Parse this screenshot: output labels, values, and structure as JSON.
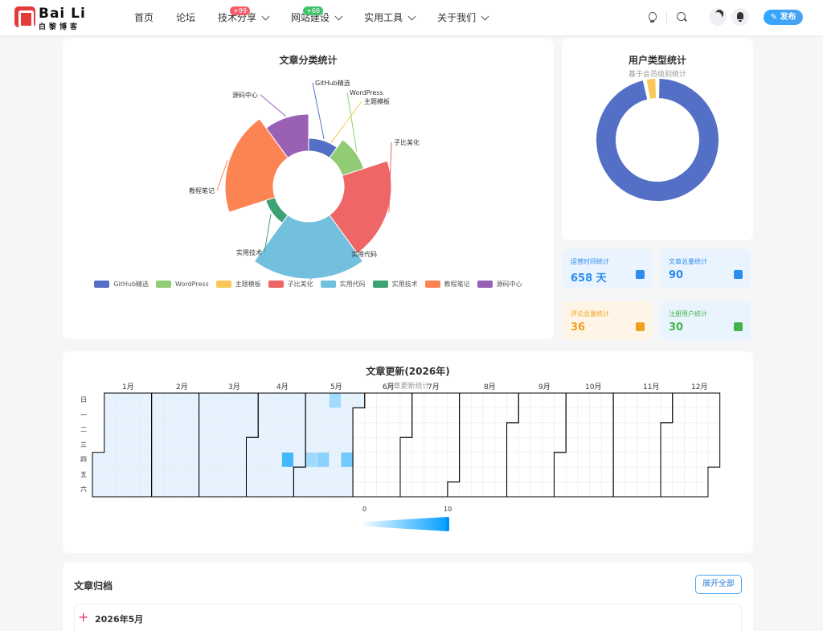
{
  "brand": {
    "name": "Bai Li",
    "sub": "白黎博客",
    "accent": "#e33a3a"
  },
  "nav": [
    {
      "label": "首页",
      "dropdown": false
    },
    {
      "label": "论坛",
      "dropdown": false
    },
    {
      "label": "技术分享",
      "dropdown": true,
      "badge": "+99",
      "badge_color": "red"
    },
    {
      "label": "网站建设",
      "dropdown": true,
      "badge": "+66",
      "badge_color": "green"
    },
    {
      "label": "实用工具",
      "dropdown": true
    },
    {
      "label": "关于我们",
      "dropdown": true
    }
  ],
  "header": {
    "publish_label": "发布"
  },
  "category_chart": {
    "title": "文章分类统计",
    "chart_data": {
      "type": "pie",
      "title": "文章分类统计",
      "rose": true,
      "slices": [
        {
          "label": "GitHub精选",
          "value": 1,
          "color": "#5470c6"
        },
        {
          "label": "WordPress",
          "value": 1,
          "color": "#91cc75"
        },
        {
          "label": "主题模板",
          "value": 0,
          "color": "#fac858"
        },
        {
          "label": "子比美化",
          "value": 2,
          "color": "#ee6666"
        },
        {
          "label": "实用代码",
          "value": 2,
          "color": "#73c0de"
        },
        {
          "label": "实用技术",
          "value": 1,
          "color": "#3ba272"
        },
        {
          "label": "教程笔记",
          "value": 2,
          "color": "#fc8452"
        },
        {
          "label": "源码中心",
          "value": 1,
          "color": "#9a60b4"
        }
      ],
      "legend_position": "bottom"
    }
  },
  "user_chart": {
    "title": "用户类型统计",
    "subtitle": "基于会员级别统计",
    "chart_data": {
      "type": "pie",
      "donut": true,
      "slices": [
        {
          "label": "",
          "value": 29,
          "color": "#5470c6"
        },
        {
          "label": "",
          "value": 1,
          "color": "#fac858"
        }
      ]
    }
  },
  "stats": [
    {
      "label": "运营时间统计",
      "value": "658 天",
      "icon": "calendar-icon",
      "bg": "#eaf4fe",
      "color": "#2d8cf0"
    },
    {
      "label": "文章总量统计",
      "value": "90",
      "icon": "file-icon",
      "bg": "#eaf4fe",
      "color": "#2d8cf0"
    },
    {
      "label": "评论总量统计",
      "value": "36",
      "icon": "comments-icon",
      "bg": "#fff5e6",
      "color": "#f0a020"
    },
    {
      "label": "注册用户统计",
      "value": "30",
      "icon": "user-icon",
      "bg": "#eaf4fe",
      "color": "#41b349"
    }
  ],
  "heatmap": {
    "title": "文章更新(2026年)",
    "subtitle": "文章更新统计",
    "months": [
      "1月",
      "2月",
      "3月",
      "4月",
      "5月",
      "6月",
      "7月",
      "8月",
      "9月",
      "10月",
      "11月",
      "12月"
    ],
    "weekdays": [
      "日",
      "一",
      "二",
      "三",
      "四",
      "五",
      "六"
    ],
    "visual_map": {
      "min": "0",
      "max": "10"
    },
    "chart_data": {
      "type": "heatmap",
      "year": 2026,
      "range": [
        0,
        10
      ],
      "active_months": [
        1,
        2,
        3,
        4,
        5
      ],
      "highlight_days": [
        {
          "date": "2026-04-23",
          "value": 7
        },
        {
          "date": "2026-05-14",
          "value": 4
        },
        {
          "date": "2026-05-17",
          "value": 3
        },
        {
          "date": "2026-05-07",
          "value": 3
        },
        {
          "date": "2026-05-28",
          "value": 5
        }
      ]
    }
  },
  "archive": {
    "title": "文章归档",
    "expand_label": "展开全部",
    "first_month": "2026年5月"
  }
}
